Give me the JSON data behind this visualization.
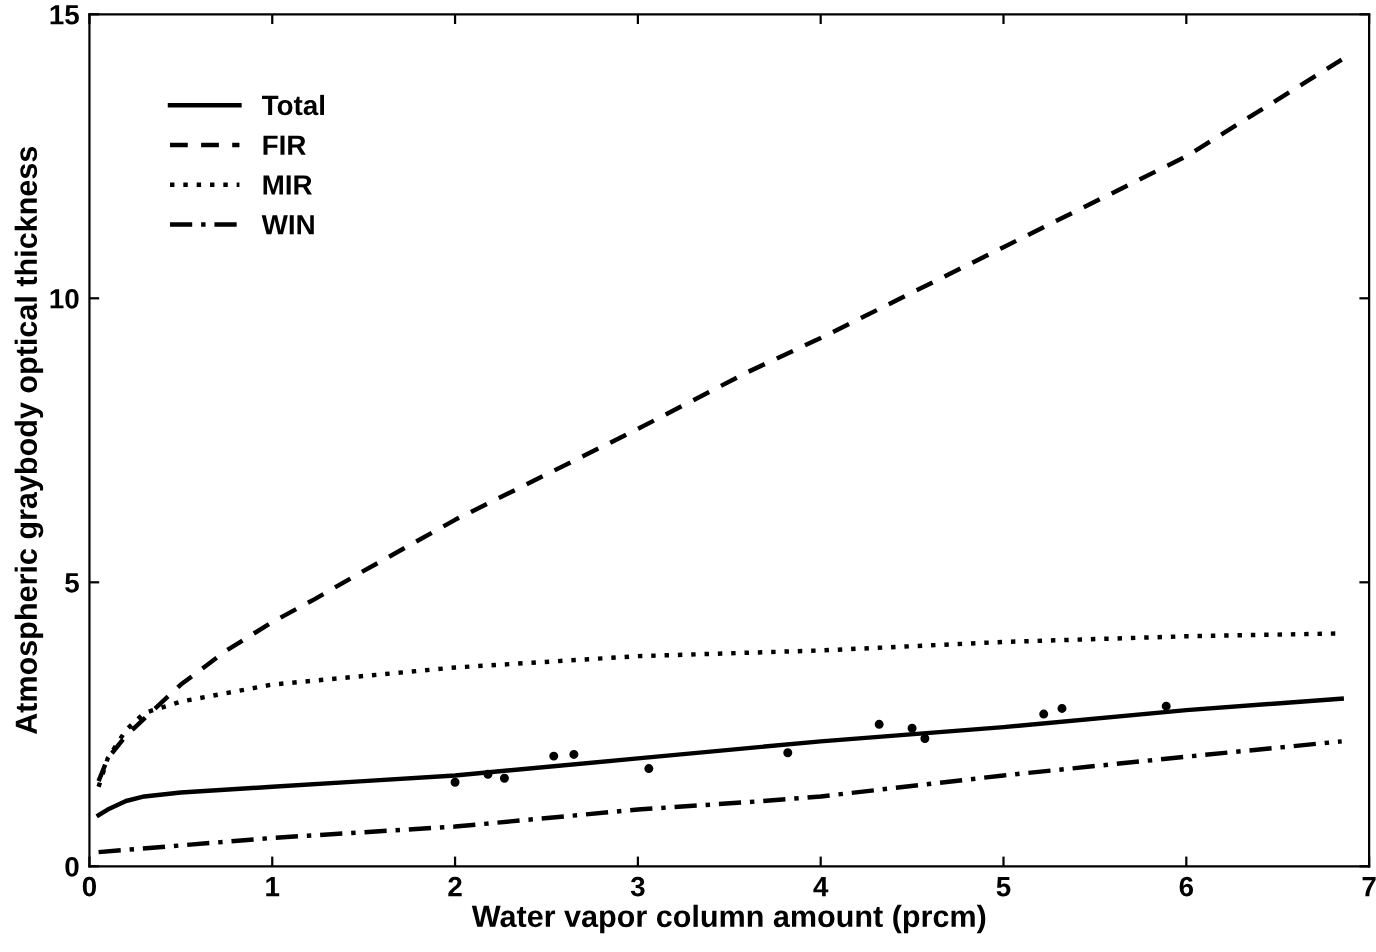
{
  "chart_data": {
    "type": "line",
    "xlabel": "Water vapor column amount (prcm)",
    "ylabel": "Atmospheric graybody optical thickness",
    "xlim": [
      0,
      7
    ],
    "ylim": [
      0,
      15
    ],
    "xticks": [
      0,
      1,
      2,
      3,
      4,
      5,
      6,
      7
    ],
    "yticks": [
      0,
      5,
      10,
      15
    ],
    "grid": false,
    "legend": "top left",
    "series": [
      {
        "name": "Total",
        "color": "#000000",
        "line_style": "solid",
        "x": [
          0.05,
          0.1,
          0.2,
          0.3,
          0.5,
          1,
          1.5,
          2,
          3,
          4,
          5,
          6,
          6.85
        ],
        "values": [
          0.9,
          1.0,
          1.15,
          1.23,
          1.3,
          1.4,
          1.5,
          1.6,
          1.9,
          2.2,
          2.45,
          2.75,
          2.95
        ]
      },
      {
        "name": "FIR",
        "color": "#000000",
        "line_style": "dashed",
        "x": [
          0.05,
          0.1,
          0.2,
          0.3,
          0.5,
          0.75,
          1,
          1.23,
          1.5,
          2,
          2.5,
          3,
          3.6,
          4,
          5,
          6,
          6.85
        ],
        "values": [
          1.5,
          1.9,
          2.3,
          2.6,
          3.2,
          3.8,
          4.3,
          4.7,
          5.2,
          6.1,
          6.9,
          7.7,
          8.7,
          9.3,
          10.9,
          12.5,
          14.2
        ]
      },
      {
        "name": "MIR",
        "color": "#000000",
        "line_style": "dotted",
        "x": [
          0.05,
          0.1,
          0.2,
          0.3,
          0.5,
          1,
          2,
          3,
          4,
          5,
          6,
          6.85
        ],
        "values": [
          1.4,
          1.9,
          2.4,
          2.7,
          2.9,
          3.2,
          3.5,
          3.7,
          3.8,
          3.95,
          4.05,
          4.1
        ]
      },
      {
        "name": "WIN",
        "color": "#000000",
        "line_style": "dashdot",
        "x": [
          0.05,
          1,
          2,
          3,
          3.6,
          4,
          5,
          6,
          6.85
        ],
        "values": [
          0.25,
          0.5,
          0.7,
          1.0,
          1.13,
          1.23,
          1.6,
          1.93,
          2.2
        ]
      },
      {
        "type": "scatter",
        "color": "#000000",
        "marker": "circle",
        "x": [
          2.0,
          2.18,
          2.27,
          2.54,
          2.65,
          3.06,
          3.82,
          4.32,
          4.5,
          4.57,
          5.22,
          5.32,
          5.89
        ],
        "values": [
          1.48,
          1.62,
          1.55,
          1.94,
          1.97,
          1.72,
          2.0,
          2.5,
          2.43,
          2.25,
          2.68,
          2.78,
          2.82
        ]
      }
    ]
  }
}
